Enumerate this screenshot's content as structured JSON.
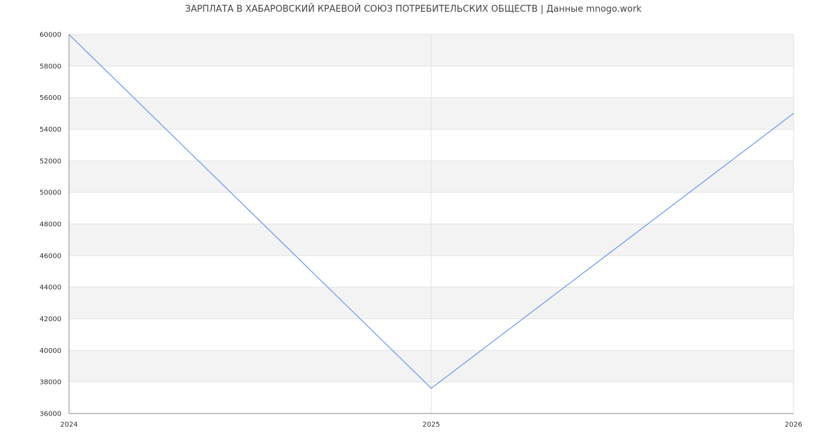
{
  "chart_data": {
    "type": "line",
    "title": "ЗАРПЛАТА В ХАБАРОВСКИЙ КРАЕВОЙ СОЮЗ ПОТРЕБИТЕЛЬСКИХ ОБЩЕСТВ | Данные mnogo.work",
    "xlabel": "",
    "ylabel": "",
    "x": [
      2024,
      2025,
      2026
    ],
    "x_tick_labels": [
      "2024",
      "2025",
      "2026"
    ],
    "series": [
      {
        "values": [
          60000,
          37600,
          55000
        ],
        "color": "#6495ed"
      }
    ],
    "ylim": [
      36000,
      60000
    ],
    "y_ticks": [
      36000,
      38000,
      40000,
      42000,
      44000,
      46000,
      48000,
      50000,
      52000,
      54000,
      56000,
      58000,
      60000
    ],
    "grid": true,
    "band_color": "#f3f3f3",
    "legend": "none"
  }
}
